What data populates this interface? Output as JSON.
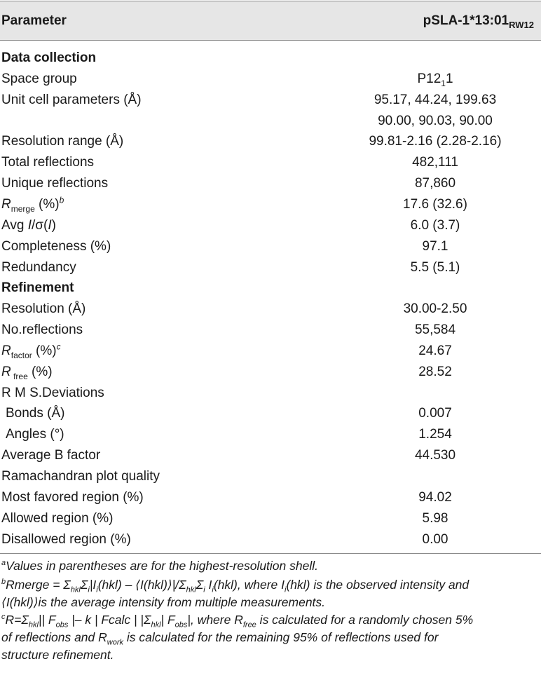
{
  "header": {
    "parameter": "Parameter",
    "value_main": "pSLA-1*13:01",
    "value_sub": "RW12"
  },
  "rows": [
    {
      "label": "Data collection",
      "value": "",
      "section": true
    },
    {
      "label": "Space group",
      "value": "P12",
      "value_sub": "1",
      "value_after": "1"
    },
    {
      "label": "Unit cell parameters (Å)",
      "value": "95.17, 44.24, 199.63"
    },
    {
      "label": "",
      "value": "90.00, 90.03, 90.00"
    },
    {
      "label": "Resolution range (Å)",
      "value": "99.81-2.16 (2.28-2.16)"
    },
    {
      "label": "Total reflections",
      "value": "482,111"
    },
    {
      "label": "Unique reflections",
      "value": "87,860"
    },
    {
      "label_it": "R",
      "label_sub": "merge",
      "label_after": " (%)",
      "label_sup": "b",
      "value": "17.6 (32.6)"
    },
    {
      "label_pre": "Avg ",
      "label_it": "I",
      "label_after": "/σ(",
      "label_it2": "I",
      "label_after2": ")",
      "value": "6.0 (3.7)"
    },
    {
      "label": "Completeness (%)",
      "value": "97.1"
    },
    {
      "label": "Redundancy",
      "value": "5.5 (5.1)"
    },
    {
      "label": "Refinement",
      "value": "",
      "section": true
    },
    {
      "label": "Resolution (Å)",
      "value": "30.00-2.50"
    },
    {
      "label": "No.reflections",
      "value": "55,584"
    },
    {
      "label_it": "R",
      "label_sub": "factor",
      "label_after": " (%)",
      "label_sup": "c",
      "value": "24.67"
    },
    {
      "label_it": "R",
      "label_sub": " free",
      "label_after": " (%)",
      "value": "28.52"
    },
    {
      "label": "R M S.Deviations",
      "value": ""
    },
    {
      "label": "Bonds (Å)",
      "value": "0.007",
      "indent": true
    },
    {
      "label": "Angles (°)",
      "value": "1.254",
      "indent": true
    },
    {
      "label": "Average B factor",
      "value": "44.530"
    },
    {
      "label": "Ramachandran plot quality",
      "value": ""
    },
    {
      "label": "Most favored region (%)",
      "value": "94.02"
    },
    {
      "label": "Allowed region (%)",
      "value": "5.98"
    },
    {
      "label": "Disallowed region (%)",
      "value": "0.00"
    }
  ],
  "footnotes": {
    "a": {
      "mark": "a",
      "text": "Values in parentheses are for the highest-resolution shell."
    },
    "b": {
      "mark": "b",
      "l1": "Rmerge = Σ",
      "s1": "hkl",
      "l2": "Σ",
      "s2": "i",
      "l3": "|I",
      "s3": "i",
      "l4": "(hkl) – ⟨I(hkl)⟩|/Σ",
      "s4": "hkl",
      "l5": "Σ",
      "s5": "i",
      "l6": " I",
      "s6": "i",
      "l7": "(hkl), where I",
      "s7": "i",
      "l8": "(hkl) is the observed intensity and",
      "line2": "⟨I(hkl)⟩is the average intensity from multiple measurements."
    },
    "c": {
      "mark": "c",
      "l1": "R=Σ",
      "s1": "hkl",
      "l2": "|| F",
      "s2": "obs",
      "l3": " |– k | Fcalc | |Σ",
      "s3": "hkl",
      "l4": "| F",
      "s4": "obs",
      "l5": "|, where R",
      "s5": "free",
      "l6": " is calculated for a randomly chosen 5%",
      "line2": "of reflections and R",
      "s6": "work",
      "line2b": " is calculated for the remaining 95% of reflections used for",
      "line3": "structure refinement."
    }
  }
}
